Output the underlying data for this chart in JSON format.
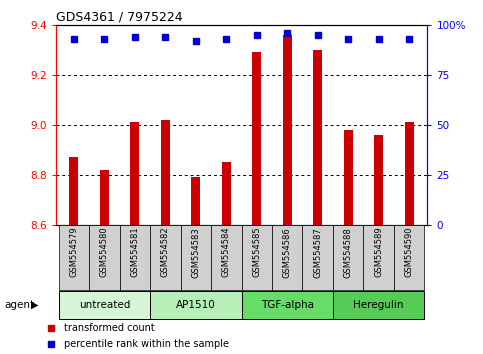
{
  "title": "GDS4361 / 7975224",
  "samples": [
    "GSM554579",
    "GSM554580",
    "GSM554581",
    "GSM554582",
    "GSM554583",
    "GSM554584",
    "GSM554585",
    "GSM554586",
    "GSM554587",
    "GSM554588",
    "GSM554589",
    "GSM554590"
  ],
  "red_values": [
    8.87,
    8.82,
    9.01,
    9.02,
    8.79,
    8.85,
    9.29,
    9.36,
    9.3,
    8.98,
    8.96,
    9.01
  ],
  "blue_values": [
    93,
    93,
    94,
    94,
    92,
    93,
    95,
    96,
    95,
    93,
    93,
    93
  ],
  "ylim_left": [
    8.6,
    9.4
  ],
  "ylim_right": [
    0,
    100
  ],
  "yticks_left": [
    8.6,
    8.8,
    9.0,
    9.2,
    9.4
  ],
  "yticks_right": [
    0,
    25,
    50,
    75,
    100
  ],
  "ytick_labels_right": [
    "0",
    "25",
    "50",
    "75",
    "100%"
  ],
  "groups": [
    {
      "label": "untreated",
      "indices": [
        0,
        1,
        2
      ],
      "color": "#d6f5d6"
    },
    {
      "label": "AP1510",
      "indices": [
        3,
        4,
        5
      ],
      "color": "#b8eeb8"
    },
    {
      "label": "TGF-alpha",
      "indices": [
        6,
        7,
        8
      ],
      "color": "#66dd66"
    },
    {
      "label": "Heregulin",
      "indices": [
        9,
        10,
        11
      ],
      "color": "#55cc55"
    }
  ],
  "bar_color": "#cc0000",
  "dot_color": "#0000cc",
  "bar_width": 0.3,
  "sample_box_color": "#d0d0d0",
  "legend_red_label": "transformed count",
  "legend_blue_label": "percentile rank within the sample",
  "agent_label": "agent"
}
